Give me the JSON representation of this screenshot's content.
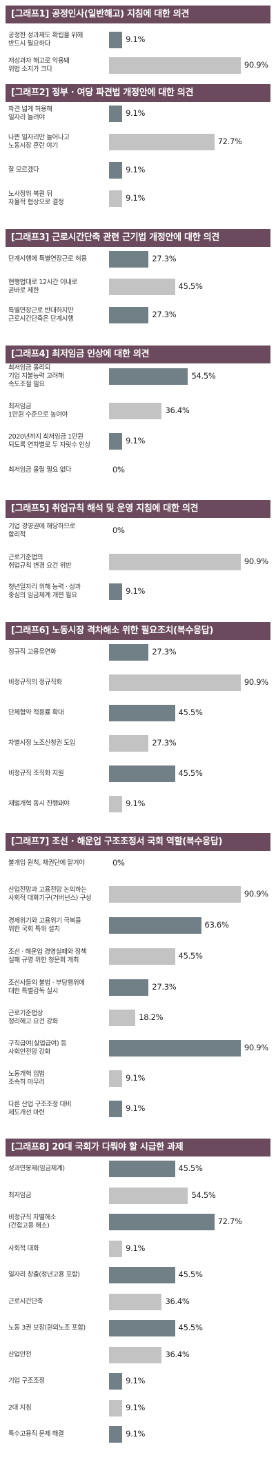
{
  "colors": {
    "header": "#6b4a5d",
    "bar_dark": "#718087",
    "bar_light": "#c3c3c3"
  },
  "chart_data": [
    {
      "type": "bar",
      "title": "[그래프1] 공정인사(일반해고) 지침에 대한 의견",
      "categories": [
        "공정한 성과제도 확립을 위해\n반드시 필요하다",
        "저성과자 해고로 악용돼\n위법 소지가 크다"
      ],
      "values": [
        9.1,
        90.9
      ],
      "labels": [
        "9.1%",
        "90.9%"
      ],
      "styles": [
        "dark",
        "light"
      ],
      "ylim": [
        0,
        100
      ]
    },
    {
      "type": "bar",
      "title": "[그래프2] 정부 · 여당 파견법 개정안에 대한 의견",
      "categories": [
        "파견 넓게 허용해\n일자리 늘려야",
        "나쁜 일자리만 늘어나고\n노동시장 혼란 야기",
        "잘 모르겠다",
        "노사정위 복원 뒤\n자율적 협상으로 결정"
      ],
      "values": [
        9.1,
        72.7,
        9.1,
        9.1
      ],
      "labels": [
        "9.1%",
        "72.7%",
        "9.1%",
        "9.1%"
      ],
      "styles": [
        "dark",
        "light",
        "dark",
        "light"
      ],
      "ylim": [
        0,
        100
      ]
    },
    {
      "type": "bar",
      "title": "[그래프3] 근로시간단축 관련 근기법 개정안에 대한 의견",
      "categories": [
        "단계시행에 특별연장근로 허용",
        "현행법대로 12시간 이내로\n곧바로 제한",
        "특별연장근로 반대하지만\n근로시간단축은 단계시행"
      ],
      "values": [
        27.3,
        45.5,
        27.3
      ],
      "labels": [
        "27.3%",
        "45.5%",
        "27.3%"
      ],
      "styles": [
        "dark",
        "light",
        "dark"
      ],
      "ylim": [
        0,
        100
      ]
    },
    {
      "type": "bar",
      "title": "[그래프4] 최저임금 인상에 대한 의견",
      "categories": [
        "최저임금 올리되\n기업 지불능력 고려해\n속도조절 필요",
        "최저임금\n1만원 수준으로 높여야",
        "2020년까지 최저임금 1만원\n되도록 연차별로 두 자릿수 인상",
        "최저임금 올릴 필요 없다"
      ],
      "values": [
        54.5,
        36.4,
        9.1,
        0
      ],
      "labels": [
        "54.5%",
        "36.4%",
        "9.1%",
        "0%"
      ],
      "styles": [
        "dark",
        "light",
        "dark",
        "light"
      ],
      "ylim": [
        0,
        100
      ]
    },
    {
      "type": "bar",
      "title": "[그래프5] 취업규칙 해석 및 운영 지침에 대한 의견",
      "categories": [
        "기업 경영권에 해당하므로\n합리적",
        "근로기준법의\n취업규칙 변경 요건 위반",
        "청년일자리 위해 능력 · 성과\n중심의 임금체계 개편 필요"
      ],
      "values": [
        0,
        90.9,
        9.1
      ],
      "labels": [
        "0%",
        "90.9%",
        "9.1%"
      ],
      "styles": [
        "dark",
        "light",
        "dark"
      ],
      "ylim": [
        0,
        100
      ]
    },
    {
      "type": "bar",
      "title": "[그래프6] 노동시장 격차해소 위한 필요조치(복수응답)",
      "categories": [
        "정규직 고용유연화",
        "비정규직의 정규직화",
        "단체협약 적용률 확대",
        "차별시정 노조신청권 도입",
        "비정규직 조직화 지원",
        "재벌개혁 동시 진행돼야"
      ],
      "values": [
        27.3,
        90.9,
        45.5,
        27.3,
        45.5,
        9.1
      ],
      "labels": [
        "27.3%",
        "90.9%",
        "45.5%",
        "27.3%",
        "45.5%",
        "9.1%"
      ],
      "styles": [
        "dark",
        "light",
        "dark",
        "light",
        "dark",
        "light"
      ],
      "ylim": [
        0,
        100
      ]
    },
    {
      "type": "bar",
      "title": "[그래프7] 조선 · 해운업 구조조정서 국회 역할(복수응답)",
      "categories": [
        "불개입 원칙, 채권단에 맡겨야",
        "산업전망과 고용전망 논의하는\n사회적 대화기구(거버넌스) 구성",
        "경제위기와 고용위기 극복을\n위한 국회 특위 설치",
        "조선 · 해운업 경영실패와 정책\n실패 규명 위한 청문회 개최",
        "조선사들의 불법 · 부당행위에\n대한 특별감독 실시",
        "근로기준법상\n정리해고 요건 강화",
        "구직급여(실업급여) 등\n사회안전망 강화",
        "노동개혁 입법\n조속히 마무리",
        "다른 산업 구조조정 대비\n제도개선 마련"
      ],
      "values": [
        0,
        90.9,
        63.6,
        45.5,
        27.3,
        18.2,
        90.9,
        9.1,
        9.1
      ],
      "labels": [
        "0%",
        "90.9%",
        "63.6%",
        "45.5%",
        "27.3%",
        "18.2%",
        "90.9%",
        "9.1%",
        "9.1%"
      ],
      "styles": [
        "dark",
        "light",
        "dark",
        "light",
        "dark",
        "light",
        "dark",
        "light",
        "dark"
      ],
      "ylim": [
        0,
        100
      ]
    },
    {
      "type": "bar",
      "title": "[그래프8] 20대 국회가 다뤄야 할 시급한 과제",
      "categories": [
        "성과연봉제(임금체계)",
        "최저임금",
        "비정규직 차별해소\n(간접고용 해소)",
        "사회적 대화",
        "일자리 창출(청년고용 포함)",
        "근로시간단축",
        "노동 3권 보장(원외노조 포함)",
        "산업안전",
        "기업 구조조정",
        "2대 지침",
        "특수고용직 문제 해결"
      ],
      "values": [
        45.5,
        54.5,
        72.7,
        9.1,
        45.5,
        36.4,
        45.5,
        36.4,
        9.1,
        9.1,
        9.1
      ],
      "labels": [
        "45.5%",
        "54.5%",
        "72.7%",
        "9.1%",
        "45.5%",
        "36.4%",
        "45.5%",
        "36.4%",
        "9.1%",
        "9.1%",
        "9.1%"
      ],
      "styles": [
        "dark",
        "light",
        "dark",
        "light",
        "dark",
        "light",
        "dark",
        "light",
        "dark",
        "light",
        "dark"
      ],
      "ylim": [
        0,
        100
      ]
    }
  ]
}
